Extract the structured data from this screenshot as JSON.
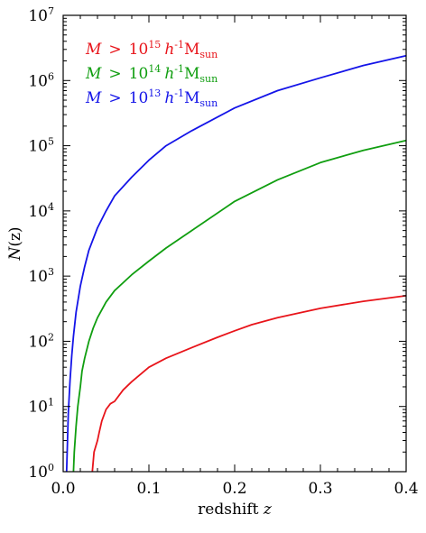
{
  "chart_data": {
    "type": "line",
    "xlabel": {
      "text": "redshift",
      "var": "z"
    },
    "ylabel": {
      "var": "N",
      "rest": "(z)"
    },
    "xlim": [
      0,
      0.4
    ],
    "ylim": [
      1,
      10000000
    ],
    "yscale": "log",
    "x_ticks": [
      "0.0",
      "0.1",
      "0.2",
      "0.3",
      "0.4"
    ],
    "x_tick_values": [
      0,
      0.1,
      0.2,
      0.3,
      0.4
    ],
    "y_ticks": [
      {
        "base": "10",
        "exp": "0",
        "value": 1
      },
      {
        "base": "10",
        "exp": "1",
        "value": 10
      },
      {
        "base": "10",
        "exp": "2",
        "value": 100
      },
      {
        "base": "10",
        "exp": "3",
        "value": 1000
      },
      {
        "base": "10",
        "exp": "4",
        "value": 10000
      },
      {
        "base": "10",
        "exp": "5",
        "value": 100000
      },
      {
        "base": "10",
        "exp": "6",
        "value": 1000000
      },
      {
        "base": "10",
        "exp": "7",
        "value": 10000000
      }
    ],
    "legend_position": "top-left",
    "series": [
      {
        "legend": {
          "m": "M",
          "gt": ">",
          "base": "10",
          "exp": "15",
          "h": "h",
          "hexp": "-1",
          "unit": "M",
          "sub": "sun"
        },
        "color": "#e8141a",
        "x": [
          0.034,
          0.036,
          0.04,
          0.042,
          0.045,
          0.05,
          0.055,
          0.06,
          0.07,
          0.08,
          0.1,
          0.12,
          0.15,
          0.18,
          0.2,
          0.22,
          0.25,
          0.3,
          0.35,
          0.4
        ],
        "y": [
          1,
          2,
          3,
          4,
          6,
          9,
          11,
          12,
          18,
          24,
          40,
          55,
          80,
          115,
          145,
          180,
          230,
          320,
          410,
          500
        ]
      },
      {
        "legend": {
          "m": "M",
          "gt": ">",
          "base": "10",
          "exp": "14",
          "h": "h",
          "hexp": "-1",
          "unit": "M",
          "sub": "sun"
        },
        "color": "#109e10",
        "x": [
          0.012,
          0.013,
          0.015,
          0.017,
          0.02,
          0.022,
          0.025,
          0.03,
          0.035,
          0.04,
          0.05,
          0.06,
          0.08,
          0.1,
          0.12,
          0.15,
          0.2,
          0.25,
          0.3,
          0.35,
          0.4
        ],
        "y": [
          1,
          2,
          5,
          10,
          20,
          35,
          55,
          100,
          160,
          230,
          400,
          600,
          1050,
          1700,
          2700,
          5000,
          14000,
          30000,
          55000,
          85000,
          120000
        ]
      },
      {
        "legend": {
          "m": "M",
          "gt": ">",
          "base": "10",
          "exp": "13",
          "h": "h",
          "hexp": "-1",
          "unit": "M",
          "sub": "sun"
        },
        "color": "#1414e8",
        "x": [
          0.004,
          0.005,
          0.006,
          0.008,
          0.01,
          0.012,
          0.015,
          0.02,
          0.025,
          0.03,
          0.04,
          0.05,
          0.06,
          0.08,
          0.1,
          0.12,
          0.15,
          0.2,
          0.25,
          0.3,
          0.35,
          0.4
        ],
        "y": [
          1,
          3,
          8,
          25,
          60,
          120,
          280,
          700,
          1400,
          2500,
          5500,
          10000,
          17000,
          33000,
          60000,
          100000,
          170000,
          380000,
          700000,
          1100000,
          1700000,
          2400000
        ]
      }
    ]
  }
}
